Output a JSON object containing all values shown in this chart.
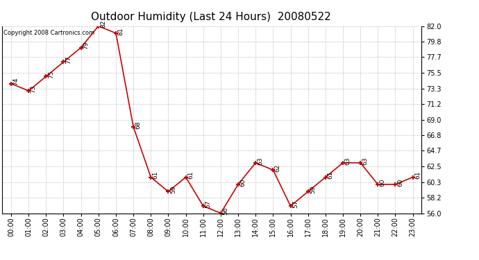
{
  "title": "Outdoor Humidity (Last 24 Hours)  20080522",
  "copyright_text": "Copyright 2008 Cartronics.com",
  "x_labels": [
    "00:00",
    "01:00",
    "02:00",
    "03:00",
    "04:00",
    "05:00",
    "06:00",
    "07:00",
    "08:00",
    "09:00",
    "10:00",
    "11:00",
    "12:00",
    "13:00",
    "14:00",
    "15:00",
    "16:00",
    "17:00",
    "18:00",
    "19:00",
    "20:00",
    "21:00",
    "22:00",
    "23:00"
  ],
  "x_values": [
    0,
    1,
    2,
    3,
    4,
    5,
    6,
    7,
    8,
    9,
    10,
    11,
    12,
    13,
    14,
    15,
    16,
    17,
    18,
    19,
    20,
    21,
    22,
    23
  ],
  "y_values": [
    74,
    73,
    75,
    77,
    79,
    82,
    81,
    68,
    61,
    59,
    61,
    57,
    56,
    60,
    63,
    62,
    57,
    59,
    61,
    63,
    63,
    60,
    60,
    61
  ],
  "point_labels": [
    "74",
    "73",
    "75",
    "77",
    "79",
    "82",
    "81",
    "68",
    "61",
    "59",
    "61",
    "57",
    "56",
    "60",
    "63",
    "62",
    "57",
    "59",
    "61",
    "63",
    "63",
    "60",
    "60",
    "61"
  ],
  "y_ticks": [
    56.0,
    58.2,
    60.3,
    62.5,
    64.7,
    66.8,
    69.0,
    71.2,
    73.3,
    75.5,
    77.7,
    79.8,
    82.0
  ],
  "ylim": [
    56.0,
    82.0
  ],
  "xlim": [
    -0.5,
    23.5
  ],
  "line_color": "#cc0000",
  "marker_color": "#cc0000",
  "bg_color": "#ffffff",
  "grid_color": "#bbbbbb",
  "title_fontsize": 11,
  "label_fontsize": 7,
  "copyright_fontsize": 6,
  "point_label_fontsize": 6.5
}
